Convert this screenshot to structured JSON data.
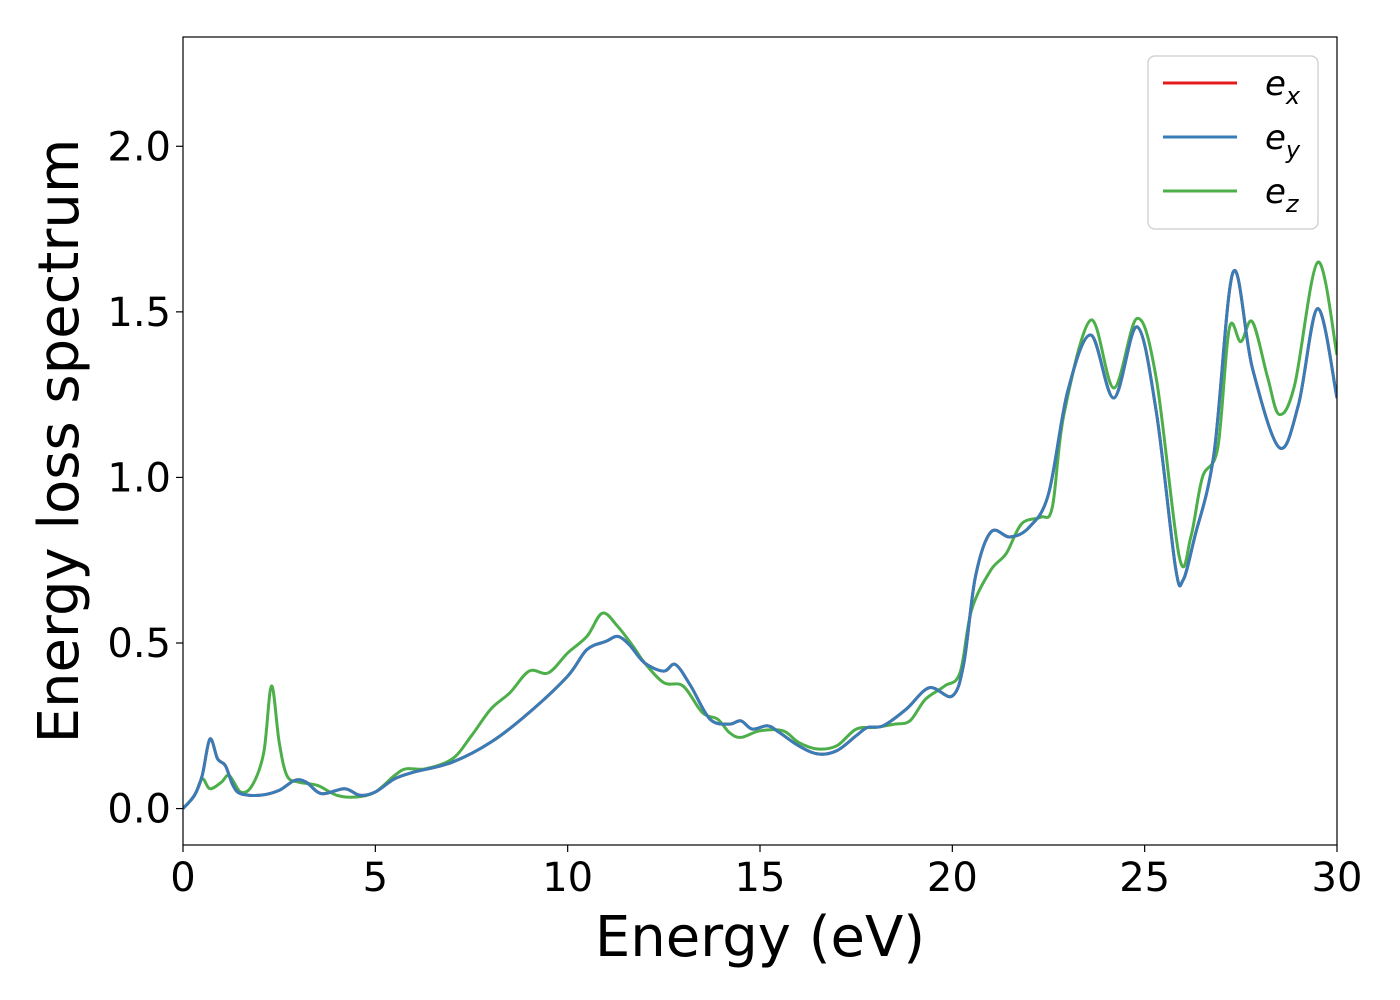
{
  "chart_data": {
    "type": "line",
    "title": "",
    "xlabel": "Energy (eV)",
    "ylabel": "Energy loss spectrum",
    "xlim": [
      0,
      30
    ],
    "ylim": [
      -0.11,
      2.33
    ],
    "xticks": [
      0,
      5,
      10,
      15,
      20,
      25,
      30
    ],
    "xtick_labels": [
      "0",
      "5",
      "10",
      "15",
      "20",
      "25",
      "30"
    ],
    "yticks": [
      0.0,
      0.5,
      1.0,
      1.5,
      2.0
    ],
    "ytick_labels": [
      "0.0",
      "0.5",
      "1.0",
      "1.5",
      "2.0"
    ],
    "grid": false,
    "legend_position": "top-right",
    "series": [
      {
        "name": "e_x",
        "legend_base": "e",
        "legend_sub": "x",
        "color": "#e41a1c",
        "points": [
          [
            0,
            0.0
          ],
          [
            0.3,
            0.04
          ],
          [
            0.5,
            0.1
          ],
          [
            0.7,
            0.21
          ],
          [
            0.9,
            0.15
          ],
          [
            1.1,
            0.13
          ],
          [
            1.3,
            0.07
          ],
          [
            1.5,
            0.045
          ],
          [
            2.0,
            0.04
          ],
          [
            2.5,
            0.055
          ],
          [
            2.9,
            0.085
          ],
          [
            3.2,
            0.08
          ],
          [
            3.6,
            0.045
          ],
          [
            4.2,
            0.06
          ],
          [
            4.6,
            0.04
          ],
          [
            5.0,
            0.05
          ],
          [
            5.5,
            0.09
          ],
          [
            6.0,
            0.11
          ],
          [
            7.0,
            0.14
          ],
          [
            8.0,
            0.2
          ],
          [
            9.0,
            0.29
          ],
          [
            10.0,
            0.4
          ],
          [
            10.5,
            0.48
          ],
          [
            11.0,
            0.505
          ],
          [
            11.3,
            0.52
          ],
          [
            11.6,
            0.495
          ],
          [
            12.0,
            0.44
          ],
          [
            12.5,
            0.415
          ],
          [
            12.8,
            0.435
          ],
          [
            13.2,
            0.37
          ],
          [
            13.7,
            0.27
          ],
          [
            14.2,
            0.255
          ],
          [
            14.5,
            0.265
          ],
          [
            14.8,
            0.24
          ],
          [
            15.2,
            0.25
          ],
          [
            15.5,
            0.23
          ],
          [
            16.0,
            0.19
          ],
          [
            16.5,
            0.165
          ],
          [
            17.0,
            0.175
          ],
          [
            17.5,
            0.22
          ],
          [
            17.8,
            0.245
          ],
          [
            18.2,
            0.25
          ],
          [
            18.8,
            0.3
          ],
          [
            19.4,
            0.365
          ],
          [
            20.0,
            0.34
          ],
          [
            20.3,
            0.44
          ],
          [
            20.6,
            0.7
          ],
          [
            21.0,
            0.835
          ],
          [
            21.5,
            0.82
          ],
          [
            22.0,
            0.85
          ],
          [
            22.5,
            0.95
          ],
          [
            23.0,
            1.26
          ],
          [
            23.6,
            1.43
          ],
          [
            24.2,
            1.24
          ],
          [
            24.8,
            1.455
          ],
          [
            25.3,
            1.2
          ],
          [
            25.8,
            0.73
          ],
          [
            26.0,
            0.69
          ],
          [
            26.3,
            0.82
          ],
          [
            26.8,
            1.07
          ],
          [
            27.3,
            1.62
          ],
          [
            27.8,
            1.33
          ],
          [
            28.5,
            1.09
          ],
          [
            29.0,
            1.22
          ],
          [
            29.5,
            1.51
          ],
          [
            30.0,
            1.24
          ]
        ]
      },
      {
        "name": "e_y",
        "legend_base": "e",
        "legend_sub": "y",
        "color": "#377eb8",
        "points": [
          [
            0,
            0.0
          ],
          [
            0.3,
            0.04
          ],
          [
            0.5,
            0.1
          ],
          [
            0.7,
            0.21
          ],
          [
            0.9,
            0.15
          ],
          [
            1.1,
            0.13
          ],
          [
            1.3,
            0.07
          ],
          [
            1.5,
            0.045
          ],
          [
            2.0,
            0.04
          ],
          [
            2.5,
            0.055
          ],
          [
            2.9,
            0.085
          ],
          [
            3.2,
            0.08
          ],
          [
            3.6,
            0.045
          ],
          [
            4.2,
            0.06
          ],
          [
            4.6,
            0.04
          ],
          [
            5.0,
            0.05
          ],
          [
            5.5,
            0.09
          ],
          [
            6.0,
            0.11
          ],
          [
            7.0,
            0.14
          ],
          [
            8.0,
            0.2
          ],
          [
            9.0,
            0.29
          ],
          [
            10.0,
            0.4
          ],
          [
            10.5,
            0.48
          ],
          [
            11.0,
            0.505
          ],
          [
            11.3,
            0.52
          ],
          [
            11.6,
            0.495
          ],
          [
            12.0,
            0.44
          ],
          [
            12.5,
            0.415
          ],
          [
            12.8,
            0.435
          ],
          [
            13.2,
            0.37
          ],
          [
            13.7,
            0.27
          ],
          [
            14.2,
            0.255
          ],
          [
            14.5,
            0.265
          ],
          [
            14.8,
            0.24
          ],
          [
            15.2,
            0.25
          ],
          [
            15.5,
            0.23
          ],
          [
            16.0,
            0.19
          ],
          [
            16.5,
            0.165
          ],
          [
            17.0,
            0.175
          ],
          [
            17.5,
            0.22
          ],
          [
            17.8,
            0.245
          ],
          [
            18.2,
            0.25
          ],
          [
            18.8,
            0.3
          ],
          [
            19.4,
            0.365
          ],
          [
            20.0,
            0.34
          ],
          [
            20.3,
            0.44
          ],
          [
            20.6,
            0.7
          ],
          [
            21.0,
            0.835
          ],
          [
            21.5,
            0.82
          ],
          [
            22.0,
            0.85
          ],
          [
            22.5,
            0.95
          ],
          [
            23.0,
            1.26
          ],
          [
            23.6,
            1.43
          ],
          [
            24.2,
            1.24
          ],
          [
            24.8,
            1.455
          ],
          [
            25.3,
            1.2
          ],
          [
            25.8,
            0.73
          ],
          [
            26.0,
            0.69
          ],
          [
            26.3,
            0.82
          ],
          [
            26.8,
            1.07
          ],
          [
            27.3,
            1.62
          ],
          [
            27.8,
            1.33
          ],
          [
            28.5,
            1.09
          ],
          [
            29.0,
            1.22
          ],
          [
            29.5,
            1.51
          ],
          [
            30.0,
            1.24
          ]
        ]
      },
      {
        "name": "e_z",
        "legend_base": "e",
        "legend_sub": "z",
        "color": "#4daf4a",
        "points": [
          [
            0,
            0.0
          ],
          [
            0.3,
            0.04
          ],
          [
            0.5,
            0.09
          ],
          [
            0.7,
            0.06
          ],
          [
            1.0,
            0.08
          ],
          [
            1.2,
            0.1
          ],
          [
            1.5,
            0.05
          ],
          [
            1.8,
            0.07
          ],
          [
            2.1,
            0.17
          ],
          [
            2.3,
            0.37
          ],
          [
            2.5,
            0.2
          ],
          [
            2.7,
            0.1
          ],
          [
            3.0,
            0.08
          ],
          [
            3.5,
            0.07
          ],
          [
            4.0,
            0.04
          ],
          [
            4.5,
            0.035
          ],
          [
            5.0,
            0.05
          ],
          [
            5.5,
            0.1
          ],
          [
            5.8,
            0.12
          ],
          [
            6.3,
            0.12
          ],
          [
            7.0,
            0.15
          ],
          [
            7.5,
            0.22
          ],
          [
            8.0,
            0.3
          ],
          [
            8.5,
            0.35
          ],
          [
            9.0,
            0.415
          ],
          [
            9.5,
            0.41
          ],
          [
            10.0,
            0.47
          ],
          [
            10.5,
            0.52
          ],
          [
            10.9,
            0.59
          ],
          [
            11.3,
            0.55
          ],
          [
            11.7,
            0.49
          ],
          [
            12.0,
            0.44
          ],
          [
            12.5,
            0.38
          ],
          [
            13.0,
            0.37
          ],
          [
            13.5,
            0.29
          ],
          [
            13.9,
            0.27
          ],
          [
            14.2,
            0.23
          ],
          [
            14.5,
            0.215
          ],
          [
            15.0,
            0.235
          ],
          [
            15.6,
            0.235
          ],
          [
            16.0,
            0.2
          ],
          [
            16.5,
            0.18
          ],
          [
            17.0,
            0.19
          ],
          [
            17.5,
            0.24
          ],
          [
            18.0,
            0.245
          ],
          [
            18.5,
            0.255
          ],
          [
            18.9,
            0.265
          ],
          [
            19.3,
            0.33
          ],
          [
            19.8,
            0.37
          ],
          [
            20.2,
            0.41
          ],
          [
            20.5,
            0.6
          ],
          [
            21.0,
            0.72
          ],
          [
            21.4,
            0.77
          ],
          [
            21.8,
            0.86
          ],
          [
            22.3,
            0.88
          ],
          [
            22.6,
            0.91
          ],
          [
            22.9,
            1.19
          ],
          [
            23.6,
            1.475
          ],
          [
            24.2,
            1.27
          ],
          [
            24.8,
            1.48
          ],
          [
            25.3,
            1.3
          ],
          [
            25.9,
            0.76
          ],
          [
            26.2,
            0.82
          ],
          [
            26.5,
            1.0
          ],
          [
            26.9,
            1.09
          ],
          [
            27.2,
            1.45
          ],
          [
            27.5,
            1.41
          ],
          [
            27.8,
            1.47
          ],
          [
            28.2,
            1.3
          ],
          [
            28.5,
            1.19
          ],
          [
            28.9,
            1.28
          ],
          [
            29.5,
            1.65
          ],
          [
            30.0,
            1.37
          ]
        ]
      }
    ]
  }
}
